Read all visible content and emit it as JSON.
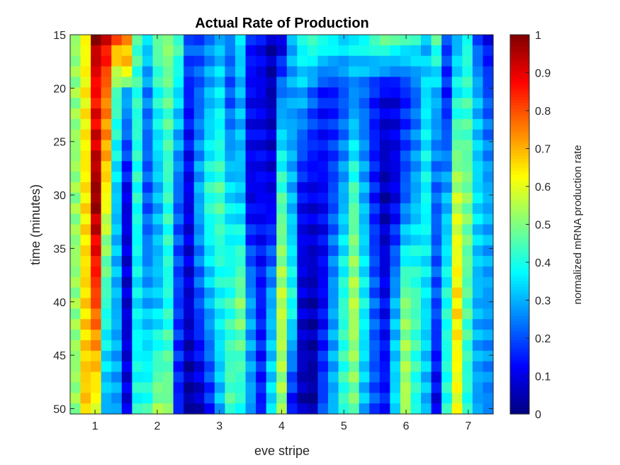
{
  "chart_data": {
    "type": "heatmap",
    "title": "Actual Rate of Production",
    "xlabel": "eve stripe",
    "ylabel": "time (minutes)",
    "colorbar_label": "normalized mRNA production rate",
    "colormap": "jet",
    "value_range": [
      0,
      1
    ],
    "x_range": [
      0.6,
      7.4
    ],
    "y_range": [
      15,
      50.5
    ],
    "y_axis_direction": "top-to-bottom",
    "x_ticks": [
      "1",
      "2",
      "3",
      "4",
      "5",
      "6",
      "7"
    ],
    "y_ticks": [
      "15",
      "20",
      "25",
      "30",
      "35",
      "40",
      "45",
      "50"
    ],
    "colorbar_ticks": [
      "0",
      "0.1",
      "0.2",
      "0.3",
      "0.4",
      "0.5",
      "0.6",
      "0.7",
      "0.8",
      "0.9",
      "1"
    ],
    "grid": "off",
    "columns": 41,
    "rows": 36,
    "column_profiles": [
      {
        "t": [
          15,
          50
        ],
        "v": [
          0.52,
          0.52
        ]
      },
      {
        "t": [
          15,
          50
        ],
        "v": [
          0.62,
          0.68
        ]
      },
      {
        "t": [
          15,
          20,
          25,
          30,
          35,
          40,
          45,
          50
        ],
        "v": [
          0.97,
          0.86,
          0.92,
          0.98,
          0.88,
          0.8,
          0.7,
          0.6
        ]
      },
      {
        "t": [
          15,
          20,
          25,
          30,
          35,
          40,
          45,
          50
        ],
        "v": [
          0.9,
          0.76,
          0.72,
          0.62,
          0.5,
          0.42,
          0.35,
          0.3
        ]
      },
      {
        "t": [
          15,
          20,
          30,
          40,
          50
        ],
        "v": [
          0.78,
          0.45,
          0.32,
          0.3,
          0.28
        ]
      },
      {
        "t": [
          15,
          18,
          20,
          30,
          40,
          50
        ],
        "v": [
          0.72,
          0.65,
          0.3,
          0.1,
          0.08,
          0.1
        ]
      },
      {
        "t": [
          15,
          20,
          30,
          40,
          50
        ],
        "v": [
          0.45,
          0.42,
          0.4,
          0.36,
          0.4
        ]
      },
      {
        "t": [
          15,
          20,
          30,
          40,
          50
        ],
        "v": [
          0.35,
          0.25,
          0.2,
          0.3,
          0.42
        ]
      },
      {
        "t": [
          15,
          20,
          30,
          40,
          50
        ],
        "v": [
          0.48,
          0.4,
          0.3,
          0.32,
          0.52
        ]
      },
      {
        "t": [
          15,
          20,
          30,
          40,
          50
        ],
        "v": [
          0.52,
          0.46,
          0.42,
          0.4,
          0.5
        ]
      },
      {
        "t": [
          15,
          20,
          30,
          40,
          50
        ],
        "v": [
          0.45,
          0.35,
          0.22,
          0.18,
          0.15
        ]
      },
      {
        "t": [
          15,
          20,
          30,
          40,
          50
        ],
        "v": [
          0.22,
          0.15,
          0.1,
          0.08,
          0.03
        ]
      },
      {
        "t": [
          15,
          20,
          30,
          40,
          50
        ],
        "v": [
          0.2,
          0.22,
          0.3,
          0.2,
          0.05
        ]
      },
      {
        "t": [
          15,
          20,
          30,
          40,
          50
        ],
        "v": [
          0.25,
          0.3,
          0.42,
          0.3,
          0.15
        ]
      },
      {
        "t": [
          15,
          20,
          30,
          40,
          50
        ],
        "v": [
          0.3,
          0.35,
          0.45,
          0.38,
          0.3
        ]
      },
      {
        "t": [
          15,
          20,
          30,
          40,
          50
        ],
        "v": [
          0.25,
          0.2,
          0.35,
          0.42,
          0.45
        ]
      },
      {
        "t": [
          15,
          20,
          30,
          40,
          50
        ],
        "v": [
          0.35,
          0.3,
          0.32,
          0.5,
          0.4
        ]
      },
      {
        "t": [
          15,
          20,
          30,
          40,
          50
        ],
        "v": [
          0.15,
          0.12,
          0.1,
          0.28,
          0.28
        ]
      },
      {
        "t": [
          15,
          20,
          30,
          40,
          50
        ],
        "v": [
          0.12,
          0.1,
          0.12,
          0.15,
          0.15
        ]
      },
      {
        "t": [
          15,
          20,
          30,
          40,
          50
        ],
        "v": [
          0.05,
          0.05,
          0.1,
          0.3,
          0.35
        ]
      },
      {
        "t": [
          15,
          20,
          30,
          40,
          50
        ],
        "v": [
          0.08,
          0.25,
          0.45,
          0.56,
          0.52
        ]
      },
      {
        "t": [
          15,
          20,
          30,
          40,
          50
        ],
        "v": [
          0.3,
          0.28,
          0.3,
          0.4,
          0.12
        ]
      },
      {
        "t": [
          15,
          20,
          30,
          40,
          50
        ],
        "v": [
          0.4,
          0.3,
          0.12,
          0.08,
          0.05
        ]
      },
      {
        "t": [
          15,
          20,
          30,
          40,
          50
        ],
        "v": [
          0.45,
          0.22,
          0.1,
          0.05,
          0.03
        ]
      },
      {
        "t": [
          15,
          20,
          30,
          40,
          50
        ],
        "v": [
          0.42,
          0.15,
          0.12,
          0.12,
          0.2
        ]
      },
      {
        "t": [
          15,
          20,
          30,
          40,
          50
        ],
        "v": [
          0.4,
          0.15,
          0.2,
          0.28,
          0.3
        ]
      },
      {
        "t": [
          15,
          20,
          30,
          40,
          50
        ],
        "v": [
          0.36,
          0.2,
          0.3,
          0.42,
          0.42
        ]
      },
      {
        "t": [
          15,
          20,
          30,
          40,
          50
        ],
        "v": [
          0.38,
          0.25,
          0.45,
          0.55,
          0.48
        ]
      },
      {
        "t": [
          15,
          20,
          30,
          40,
          50
        ],
        "v": [
          0.4,
          0.22,
          0.3,
          0.38,
          0.3
        ]
      },
      {
        "t": [
          15,
          20,
          30,
          40,
          50
        ],
        "v": [
          0.45,
          0.15,
          0.15,
          0.22,
          0.2
        ]
      },
      {
        "t": [
          15,
          20,
          30,
          40,
          50
        ],
        "v": [
          0.48,
          0.1,
          0.05,
          0.12,
          0.15
        ]
      },
      {
        "t": [
          15,
          20,
          30,
          40,
          50
        ],
        "v": [
          0.45,
          0.1,
          0.1,
          0.3,
          0.35
        ]
      },
      {
        "t": [
          15,
          20,
          30,
          40,
          50
        ],
        "v": [
          0.42,
          0.15,
          0.22,
          0.5,
          0.55
        ]
      },
      {
        "t": [
          15,
          20,
          30,
          40,
          50
        ],
        "v": [
          0.4,
          0.22,
          0.3,
          0.45,
          0.4
        ]
      },
      {
        "t": [
          15,
          20,
          30,
          40,
          50
        ],
        "v": [
          0.3,
          0.35,
          0.38,
          0.35,
          0.3
        ]
      },
      {
        "t": [
          15,
          20,
          30,
          40,
          50
        ],
        "v": [
          0.45,
          0.3,
          0.22,
          0.2,
          0.1
        ]
      },
      {
        "t": [
          15,
          20,
          30,
          40,
          50
        ],
        "v": [
          0.2,
          0.15,
          0.3,
          0.4,
          0.4
        ]
      },
      {
        "t": [
          15,
          20,
          30,
          40,
          50
        ],
        "v": [
          0.3,
          0.38,
          0.56,
          0.65,
          0.6
        ]
      },
      {
        "t": [
          15,
          20,
          30,
          40,
          50
        ],
        "v": [
          0.4,
          0.42,
          0.5,
          0.45,
          0.4
        ]
      },
      {
        "t": [
          15,
          20,
          30,
          40,
          50
        ],
        "v": [
          0.2,
          0.3,
          0.35,
          0.3,
          0.28
        ]
      },
      {
        "t": [
          15,
          20,
          30,
          40,
          50
        ],
        "v": [
          0.12,
          0.2,
          0.3,
          0.28,
          0.25
        ]
      }
    ]
  }
}
